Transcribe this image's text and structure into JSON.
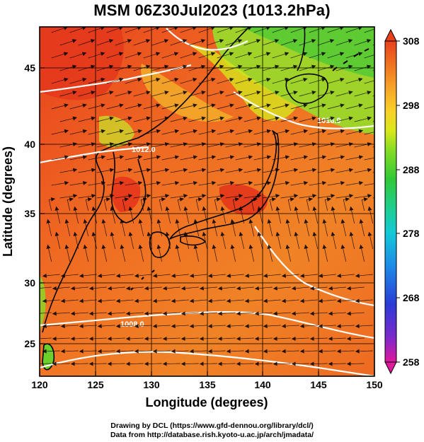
{
  "title": "MSM 06Z30Jul2023 (1013.2hPa)",
  "credits": {
    "line1": "Drawing by DCL (https://www.gfd-dennou.org/library/dcl/)",
    "line2": "Data from http://database.rish.kyoto-u.ac.jp/arch/jmadata/"
  },
  "map": {
    "lon_range": [
      120,
      150
    ],
    "lat_range": [
      22.4,
      47.6
    ],
    "xlabel": "Longitude (degrees)",
    "ylabel": "Latitude  (degrees)",
    "x_ticks": [
      "120",
      "125",
      "130",
      "135",
      "140",
      "145",
      "150"
    ],
    "y_ticks": [
      "25",
      "30",
      "35",
      "40",
      "45"
    ],
    "isobar_labels": [
      "1008.0",
      "1012.0",
      "1016.0"
    ]
  },
  "colorbar": {
    "min": 258,
    "max": 308,
    "tick_labels": [
      "308",
      "298",
      "288",
      "278",
      "268",
      "258"
    ],
    "colors": [
      "#e0189c",
      "#7a2acd",
      "#2b3bd6",
      "#1e8be8",
      "#14c8d8",
      "#1fcf8f",
      "#32c838",
      "#86dc24",
      "#d8e81a",
      "#f8d22a",
      "#f7a027",
      "#ef7020",
      "#e8401d"
    ]
  }
}
